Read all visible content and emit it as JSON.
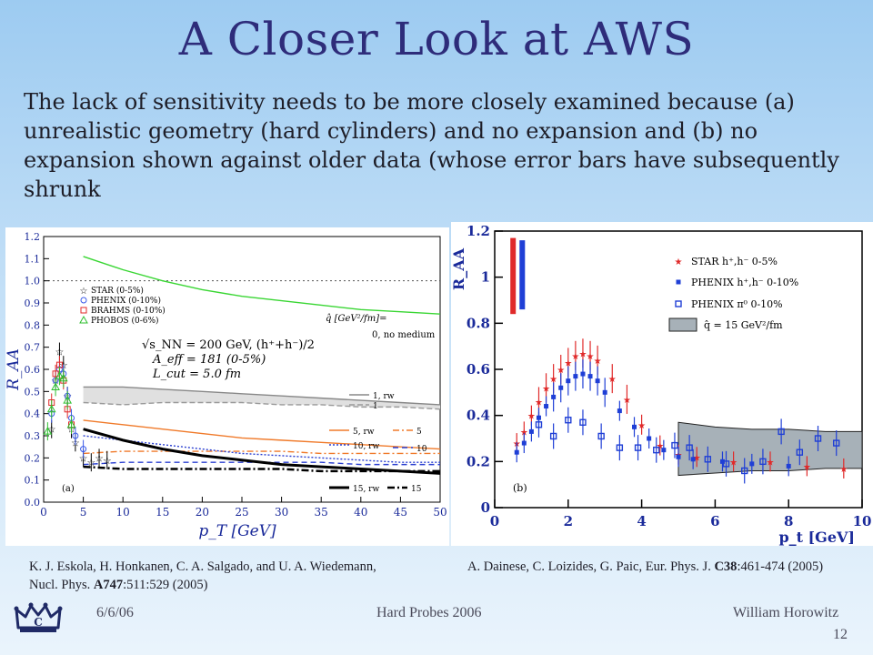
{
  "slide": {
    "title": "A Closer Look at AWS",
    "body": "The lack of sensitivity needs to be more closely examined because (a) unrealistic geometry (hard cylinders) and no expansion and (b) no expansion shown against older data (whose error bars have subsequently shrunk"
  },
  "citations": {
    "left_line1": "K. J. Eskola, H. Honkanen, C. A. Salgado, and U. A. Wiedemann,",
    "left_line2_pre": "Nucl. Phys. ",
    "left_line2_bold": "A747",
    "left_line2_post": ":511:529 (2005)",
    "right_pre": "A. Dainese, C. Loizides, G. Paic, Eur. Phys. J. ",
    "right_bold": "C38",
    "right_post": ":461-474 (2005)"
  },
  "footer": {
    "date": "6/6/06",
    "event": "Hard Probes 2006",
    "author": "William Horowitz",
    "page": "12",
    "logo_icon": "crown-logo-icon"
  },
  "chart_data": [
    {
      "type": "line",
      "panel_label": "(a)",
      "xlabel": "p_T [GeV]",
      "ylabel": "R_AA",
      "xlim": [
        0,
        50
      ],
      "ylim": [
        0,
        1.2
      ],
      "xticks": [
        "0",
        "5",
        "10",
        "15",
        "20",
        "25",
        "30",
        "35",
        "40",
        "45",
        "50"
      ],
      "yticks": [
        "0.0",
        "0.1",
        "0.2",
        "0.3",
        "0.4",
        "0.5",
        "0.6",
        "0.7",
        "0.8",
        "0.9",
        "1.0",
        "1.1",
        "1.2"
      ],
      "annotations": [
        "√s_NN = 200 GeV, (h⁺+h⁻)/2",
        "A_eff = 181 (0-5%)",
        "L_cut = 5.0 fm",
        "q̂ [GeV²/fm]=",
        "0, no medium"
      ],
      "legend_data": [
        "STAR (0-5%)",
        "PHENIX (0-10%)",
        "BRAHMS (0-10%)",
        "PHOBOS (0-6%)"
      ],
      "legend_curves": [
        "1, rw",
        "1",
        "5, rw",
        "5",
        "10, rw",
        "10",
        "15, rw",
        "15"
      ],
      "series": [
        {
          "name": "0, no medium",
          "color": "#39d633",
          "x": [
            5,
            10,
            15,
            20,
            25,
            30,
            35,
            40,
            45,
            50
          ],
          "y": [
            1.11,
            1.05,
            1.0,
            0.96,
            0.93,
            0.91,
            0.89,
            0.87,
            0.86,
            0.85
          ]
        },
        {
          "name": "1, rw",
          "color": "#888888",
          "x": [
            5,
            10,
            15,
            20,
            25,
            30,
            35,
            40,
            45,
            50
          ],
          "y": [
            0.52,
            0.52,
            0.51,
            0.5,
            0.49,
            0.48,
            0.47,
            0.46,
            0.45,
            0.44
          ]
        },
        {
          "name": "1",
          "color": "#999999",
          "x": [
            5,
            10,
            15,
            20,
            25,
            30,
            35,
            40,
            45,
            50
          ],
          "y": [
            0.45,
            0.44,
            0.45,
            0.45,
            0.45,
            0.44,
            0.44,
            0.43,
            0.43,
            0.42
          ]
        },
        {
          "name": "5, rw",
          "color": "#f07a2a",
          "x": [
            5,
            10,
            15,
            20,
            25,
            30,
            35,
            40,
            45,
            50
          ],
          "y": [
            0.37,
            0.35,
            0.33,
            0.31,
            0.29,
            0.28,
            0.27,
            0.26,
            0.25,
            0.24
          ]
        },
        {
          "name": "5",
          "color": "#f07a2a",
          "x": [
            5,
            10,
            15,
            20,
            25,
            30,
            35,
            40,
            45,
            50
          ],
          "y": [
            0.22,
            0.23,
            0.23,
            0.23,
            0.23,
            0.23,
            0.22,
            0.22,
            0.22,
            0.22
          ]
        },
        {
          "name": "10, rw",
          "color": "#2a3fd0",
          "x": [
            5,
            10,
            15,
            20,
            25,
            30,
            35,
            40,
            45,
            50
          ],
          "y": [
            0.3,
            0.28,
            0.26,
            0.24,
            0.22,
            0.21,
            0.2,
            0.19,
            0.18,
            0.18
          ]
        },
        {
          "name": "10",
          "color": "#2a3fd0",
          "x": [
            5,
            10,
            15,
            20,
            25,
            30,
            35,
            40,
            45,
            50
          ],
          "y": [
            0.17,
            0.18,
            0.18,
            0.18,
            0.18,
            0.18,
            0.18,
            0.17,
            0.17,
            0.17
          ]
        },
        {
          "name": "15, rw",
          "color": "#000000",
          "x": [
            5,
            10,
            15,
            20,
            25,
            30,
            35,
            40,
            45,
            50
          ],
          "y": [
            0.33,
            0.28,
            0.24,
            0.21,
            0.19,
            0.17,
            0.16,
            0.15,
            0.14,
            0.13
          ]
        },
        {
          "name": "15",
          "color": "#000000",
          "x": [
            5,
            10,
            15,
            20,
            25,
            30,
            35,
            40,
            45,
            50
          ],
          "y": [
            0.16,
            0.15,
            0.15,
            0.15,
            0.15,
            0.15,
            0.14,
            0.14,
            0.14,
            0.14
          ]
        }
      ],
      "data_points": {
        "STAR (0-5%)": {
          "x": [
            1,
            1.5,
            2,
            2.5,
            3,
            3.5,
            4,
            5,
            6,
            7,
            8
          ],
          "y": [
            0.33,
            0.55,
            0.68,
            0.62,
            0.48,
            0.33,
            0.27,
            0.2,
            0.18,
            0.2,
            0.19
          ]
        },
        "PHENIX (0-10%)": {
          "x": [
            1,
            1.5,
            2,
            2.5,
            3,
            3.5,
            4,
            5
          ],
          "y": [
            0.4,
            0.55,
            0.6,
            0.58,
            0.48,
            0.38,
            0.3,
            0.24
          ]
        },
        "BRAHMS (0-10%)": {
          "x": [
            1,
            1.5,
            2,
            2.5,
            3,
            3.5
          ],
          "y": [
            0.45,
            0.58,
            0.62,
            0.55,
            0.42,
            0.35
          ]
        },
        "PHOBOS (0-6%)": {
          "x": [
            0.5,
            1,
            1.5,
            2,
            2.5,
            3,
            3.5
          ],
          "y": [
            0.32,
            0.42,
            0.52,
            0.57,
            0.56,
            0.46,
            0.35
          ]
        }
      }
    },
    {
      "type": "scatter",
      "panel_label": "(b)",
      "xlabel": "p_t [GeV]",
      "ylabel": "R_AA",
      "xlim": [
        0,
        10
      ],
      "ylim": [
        0,
        1.2
      ],
      "xticks": [
        "0",
        "2",
        "4",
        "6",
        "8",
        "10"
      ],
      "yticks": [
        "0",
        "0.2",
        "0.4",
        "0.6",
        "0.8",
        "1",
        "1.2"
      ],
      "legend": [
        "STAR h⁺,h⁻ 0-5%",
        "PHENIX h⁺,h⁻ 0-10%",
        "PHENIX π⁰ 0-10%",
        "q̂ = 15 GeV²/fm"
      ],
      "series": [
        {
          "name": "STAR h⁺,h⁻ 0-5%",
          "color": "#e02a2a",
          "x": [
            0.6,
            0.8,
            1.0,
            1.2,
            1.4,
            1.6,
            1.8,
            2.0,
            2.2,
            2.4,
            2.6,
            2.8,
            3.2,
            3.6,
            4.0,
            4.5,
            5.0,
            5.5,
            6.5,
            7.5,
            8.5,
            9.5
          ],
          "y": [
            0.28,
            0.33,
            0.4,
            0.46,
            0.52,
            0.56,
            0.6,
            0.63,
            0.66,
            0.67,
            0.66,
            0.64,
            0.56,
            0.47,
            0.36,
            0.27,
            0.23,
            0.22,
            0.2,
            0.2,
            0.18,
            0.17
          ]
        },
        {
          "name": "PHENIX h⁺,h⁻ 0-10%",
          "color": "#1f3fd6",
          "x": [
            0.6,
            0.8,
            1.0,
            1.2,
            1.4,
            1.6,
            1.8,
            2.0,
            2.2,
            2.4,
            2.6,
            2.8,
            3.0,
            3.4,
            3.8,
            4.2,
            4.6,
            5.0,
            5.4,
            6.2,
            7.0,
            8.0
          ],
          "y": [
            0.24,
            0.28,
            0.33,
            0.39,
            0.44,
            0.48,
            0.52,
            0.55,
            0.57,
            0.58,
            0.57,
            0.55,
            0.5,
            0.42,
            0.35,
            0.3,
            0.25,
            0.22,
            0.21,
            0.2,
            0.19,
            0.18
          ]
        },
        {
          "name": "PHENIX π⁰ 0-10%",
          "color": "#1f3fd6",
          "x": [
            1.2,
            1.6,
            2.0,
            2.4,
            2.9,
            3.4,
            3.9,
            4.4,
            4.9,
            5.3,
            5.8,
            6.3,
            6.8,
            7.3,
            7.8,
            8.3,
            8.8,
            9.3
          ],
          "y": [
            0.36,
            0.31,
            0.38,
            0.37,
            0.31,
            0.26,
            0.26,
            0.25,
            0.27,
            0.26,
            0.21,
            0.19,
            0.16,
            0.2,
            0.33,
            0.24,
            0.3,
            0.28
          ]
        }
      ],
      "band": {
        "name": "q̂ = 15 GeV²/fm",
        "color": "#a7b1b8",
        "x": [
          5,
          6,
          7,
          8,
          9,
          10
        ],
        "upper": [
          0.37,
          0.35,
          0.34,
          0.34,
          0.33,
          0.33
        ],
        "lower": [
          0.14,
          0.15,
          0.16,
          0.16,
          0.17,
          0.17
        ]
      },
      "systematic_bars": [
        {
          "color": "#e02a2a",
          "x": 0.5,
          "y_low": 0.84,
          "y_high": 1.17
        },
        {
          "color": "#1f3fd6",
          "x": 0.75,
          "y_low": 0.86,
          "y_high": 1.16
        }
      ]
    }
  ]
}
